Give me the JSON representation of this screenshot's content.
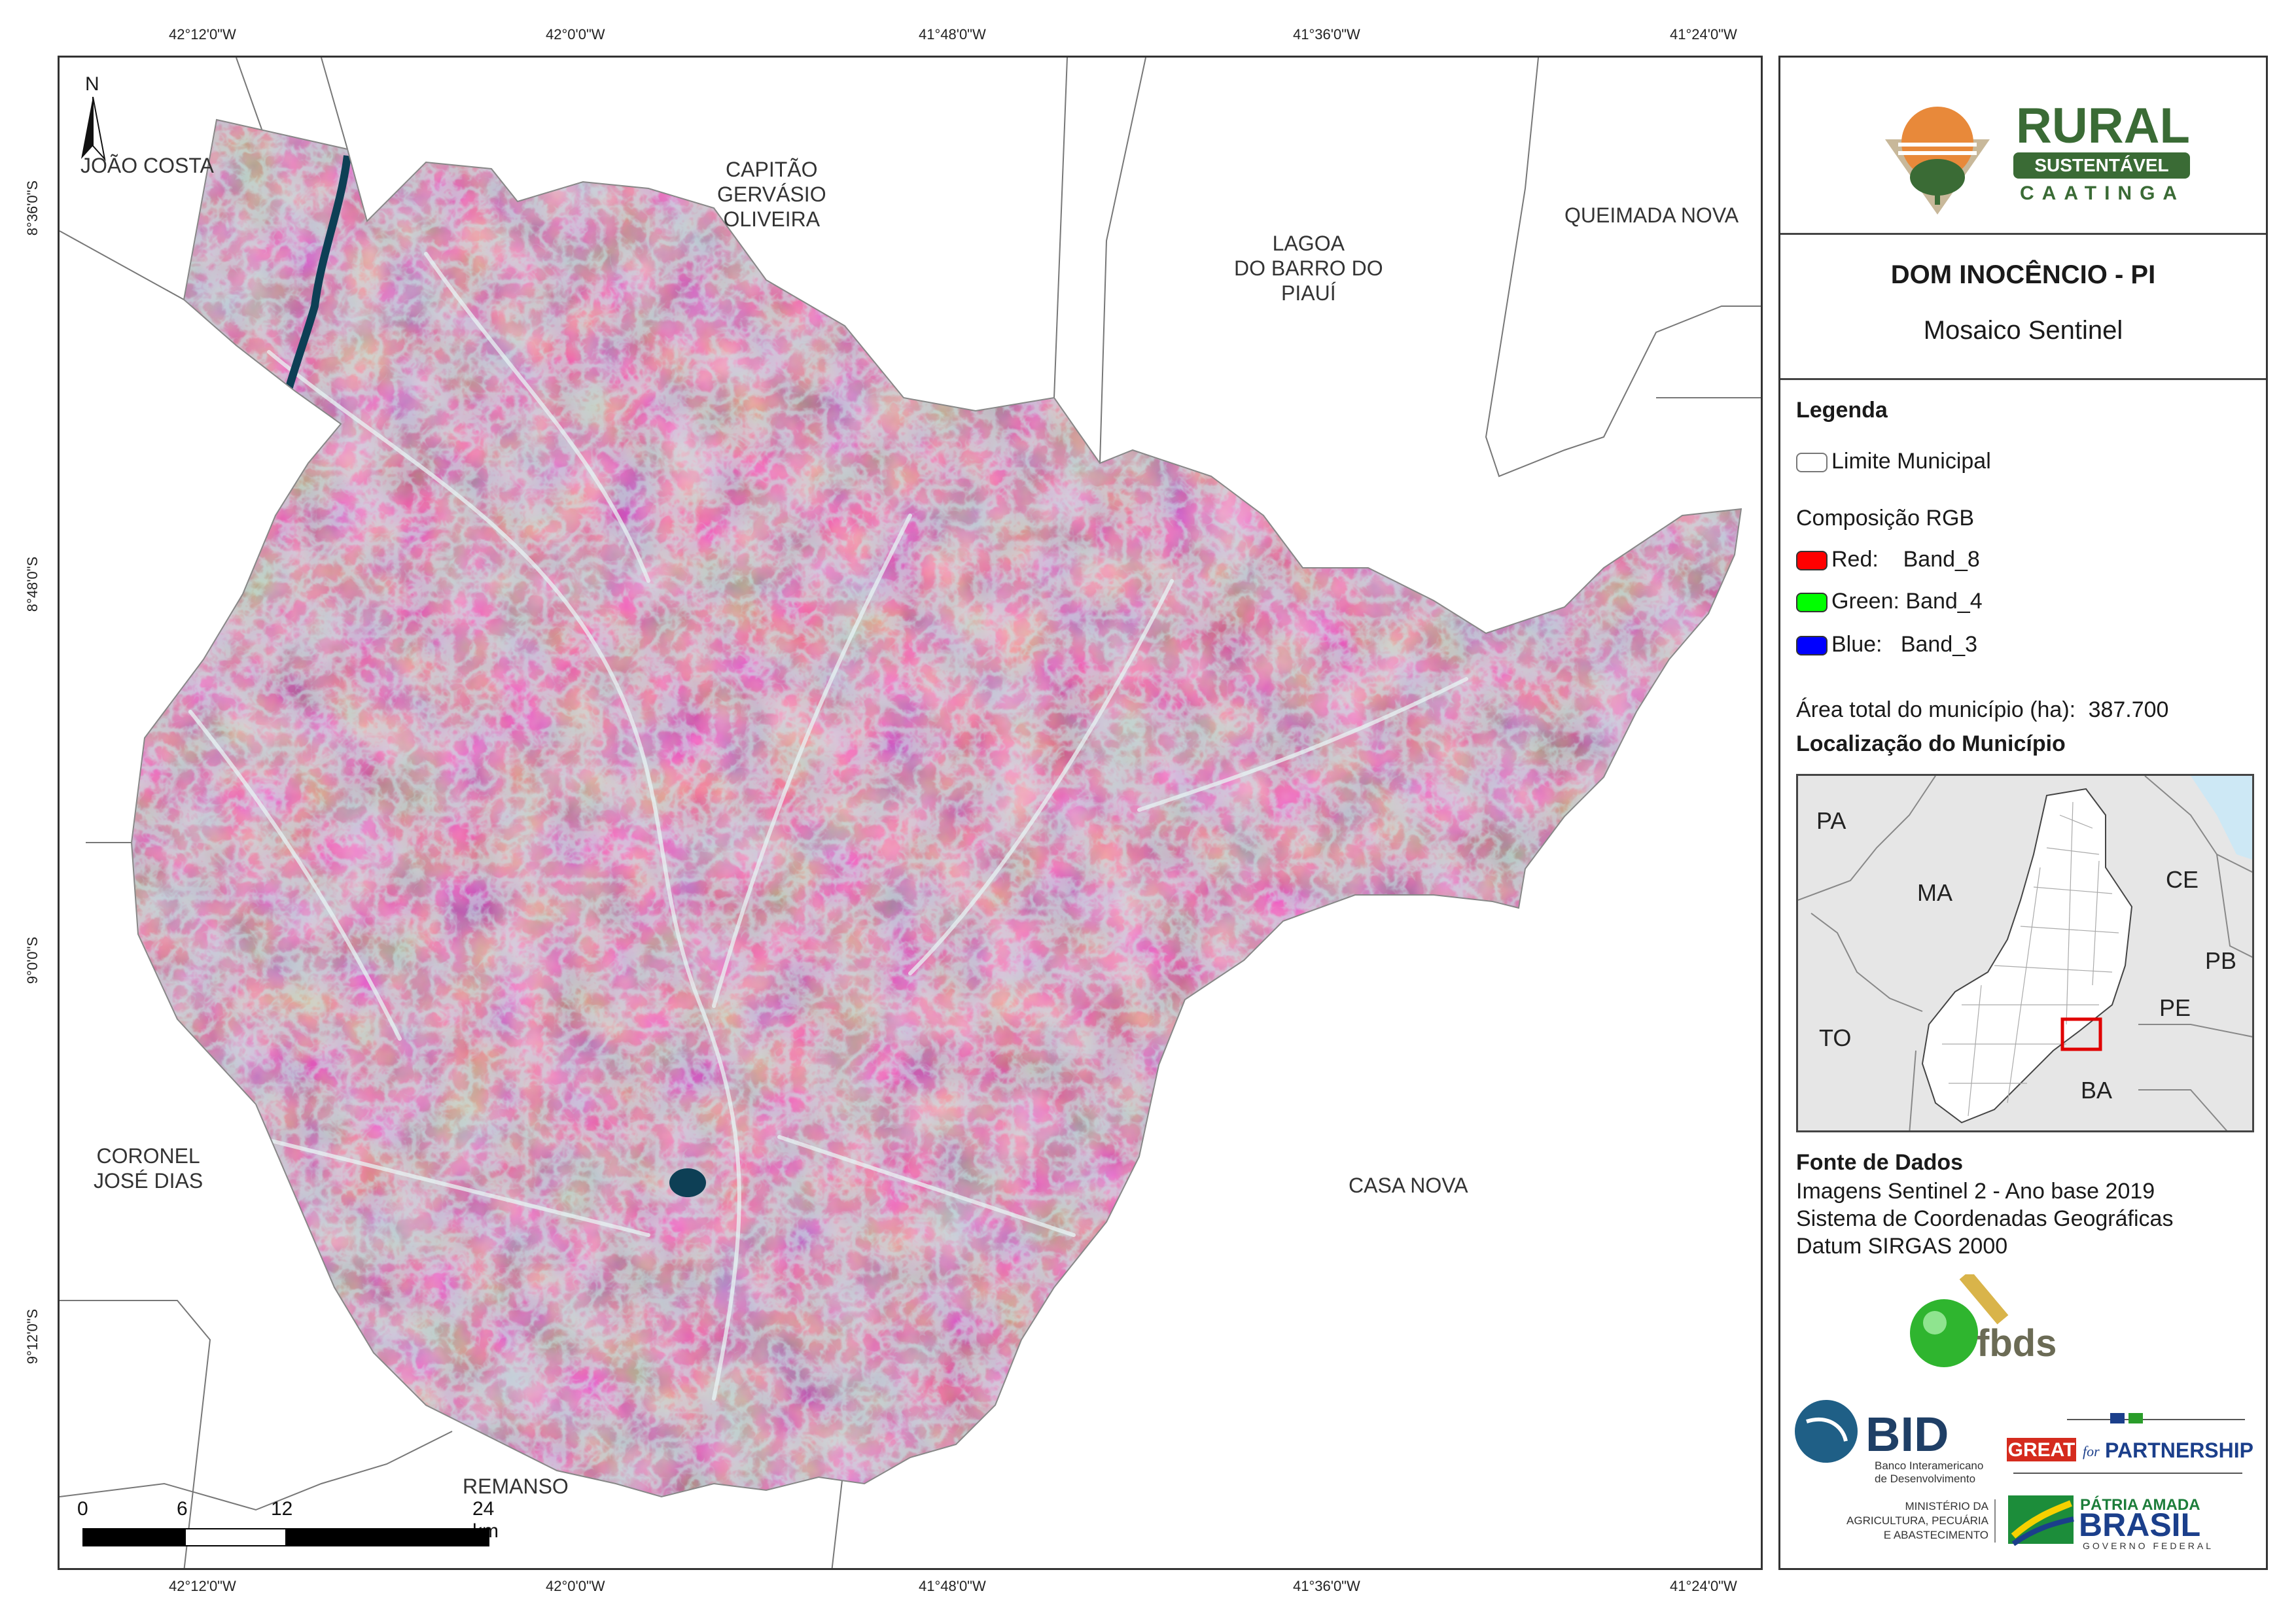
{
  "coordinates": {
    "top": [
      "42°12'0\"W",
      "42°0'0\"W",
      "41°48'0\"W",
      "41°36'0\"W",
      "41°24'0\"W"
    ],
    "bottom": [
      "42°12'0\"W",
      "42°0'0\"W",
      "41°48'0\"W",
      "41°36'0\"W",
      "41°24'0\"W"
    ],
    "left": [
      "8°36'0\"S",
      "8°48'0\"S",
      "9°0'0\"S",
      "9°12'0\"S"
    ]
  },
  "map": {
    "north_label": "N",
    "municipality_labels": {
      "joao_costa": "JOÃO COSTA",
      "capitao_1": "CAPITÃO",
      "capitao_2": "GERVÁSIO",
      "capitao_3": "OLIVEIRA",
      "lagoa_1": "LAGOA",
      "lagoa_2": "DO BARRO DO",
      "lagoa_3": "PIAUÍ",
      "queimada_nova": "QUEIMADA NOVA",
      "coronel_1": "CORONEL",
      "coronel_2": "JOSÉ DIAS",
      "casa_nova": "CASA NOVA",
      "remanso": "REMANSO"
    },
    "scale": {
      "t0": "0",
      "t1": "6",
      "t2": "12",
      "t3": "24 km"
    }
  },
  "panel": {
    "brand": {
      "word": "RURAL",
      "band": "SUSTENTÁVEL",
      "sub": "CAATINGA"
    },
    "title": "DOM INOCÊNCIO - PI",
    "subtitle": "Mosaico Sentinel",
    "legend": {
      "heading": "Legenda",
      "boundary": "Limite Municipal",
      "rgb_heading": "Composição RGB",
      "red": "Red:    Band_8",
      "green": "Green: Band_4",
      "blue": "Blue:   Band_3",
      "area_label": "Área total do município (ha):",
      "area_value": "387.700",
      "location_heading": "Localização do Município"
    },
    "locator_labels": {
      "pa": "PA",
      "ma": "MA",
      "ce": "CE",
      "pb": "PB",
      "pe": "PE",
      "to": "TO",
      "ba": "BA"
    },
    "source": {
      "heading": "Fonte de Dados",
      "line1": "Imagens Sentinel 2 - Ano base 2019",
      "line2": "Sistema de Coordenadas Geográficas",
      "line3": "Datum SIRGAS 2000"
    },
    "logos": {
      "fbds": "fbds",
      "bid": "BID",
      "bid_sub1": "Banco Interamericano",
      "bid_sub2": "de Desenvolvimento",
      "great": "GREAT",
      "for": "for",
      "partnership": "PARTNERSHIP",
      "min1": "MINISTÉRIO DA",
      "min2": "AGRICULTURA, PECUÁRIA",
      "min3": "E ABASTECIMENTO",
      "patria": "PÁTRIA AMADA",
      "brasil": "BRASIL",
      "gov": "GOVERNO FEDERAL"
    }
  },
  "colors": {
    "red_band": "#ff0000",
    "green_band": "#00ff00",
    "blue_band": "#0000ff",
    "brand_green": "#3a6b35",
    "locator_highlight": "#e00000",
    "locator_sea": "#cde8f5"
  }
}
